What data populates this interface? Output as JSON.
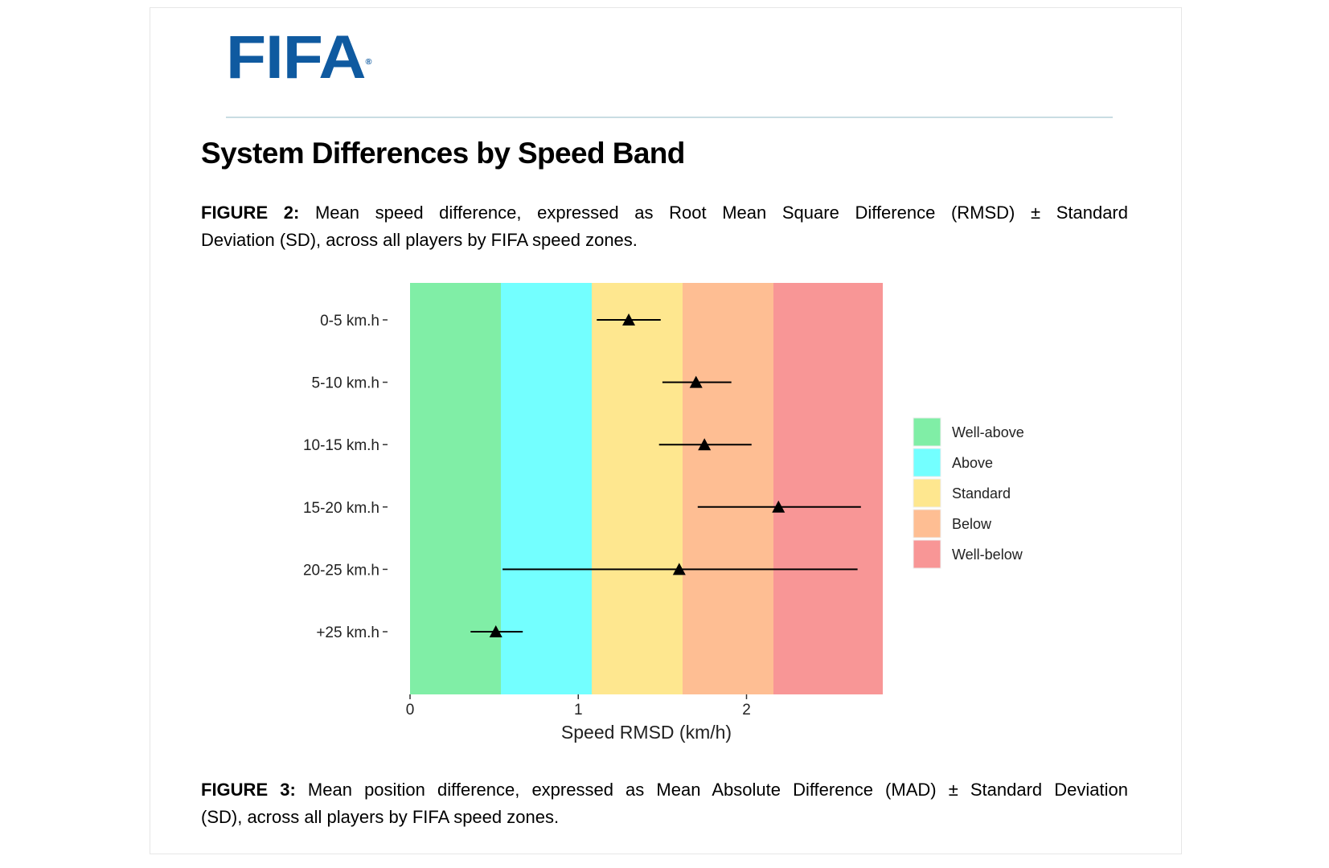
{
  "logo": {
    "text": "FIFA",
    "mark": "®",
    "color": "#0f5aa0"
  },
  "title": "System Differences by Speed Band",
  "figure2": {
    "label": "FIGURE 2:",
    "line1": "Mean speed difference, expressed as Root Mean Square Difference (RMSD) ± Standard",
    "line2": "Deviation (SD), across all players by FIFA speed zones."
  },
  "figure3": {
    "label": "FIGURE 3:",
    "line1": "Mean position difference, expressed as Mean Absolute Difference (MAD) ± Standard Deviation",
    "line2": "(SD), across all players by FIFA speed zones."
  },
  "chart_data": {
    "type": "scatter",
    "xlabel": "Speed RMSD (km/h)",
    "ylabel": "",
    "xlim": [
      0,
      2.81
    ],
    "xticks": [
      "0",
      "1",
      "2"
    ],
    "xtick_values": [
      0,
      1,
      2
    ],
    "categories": [
      "0-5 km.h",
      "5-10 km.h",
      "10-15 km.h",
      "15-20 km.h",
      "20-25 km.h",
      "+25 km.h"
    ],
    "values": [
      1.3,
      1.7,
      1.75,
      2.19,
      1.6,
      0.51
    ],
    "error_low": [
      1.11,
      1.5,
      1.48,
      1.71,
      0.55,
      0.36
    ],
    "error_high": [
      1.49,
      1.91,
      2.03,
      2.68,
      2.66,
      0.67
    ],
    "marker": "triangle",
    "bands": [
      {
        "name": "Well-above",
        "from": 0,
        "to": 0.54,
        "color": "#80eea6"
      },
      {
        "name": "Above",
        "from": 0.54,
        "to": 1.08,
        "color": "#73ffff"
      },
      {
        "name": "Standard",
        "from": 1.08,
        "to": 1.62,
        "color": "#fee78f"
      },
      {
        "name": "Below",
        "from": 1.62,
        "to": 2.16,
        "color": "#febe93"
      },
      {
        "name": "Well-below",
        "from": 2.16,
        "to": 2.81,
        "color": "#f89696"
      }
    ],
    "legend": {
      "placement": "right",
      "entries": [
        "Well-above",
        "Above",
        "Standard",
        "Below",
        "Well-below"
      ]
    },
    "grid": false
  }
}
